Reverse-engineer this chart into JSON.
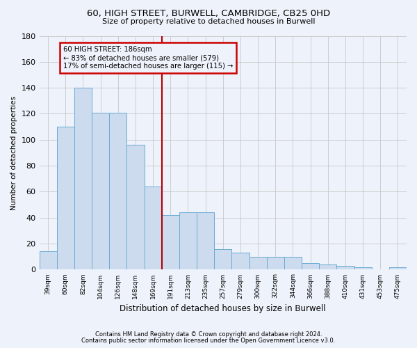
{
  "title_line1": "60, HIGH STREET, BURWELL, CAMBRIDGE, CB25 0HD",
  "title_line2": "Size of property relative to detached houses in Burwell",
  "xlabel": "Distribution of detached houses by size in Burwell",
  "ylabel": "Number of detached properties",
  "categories": [
    "39sqm",
    "60sqm",
    "82sqm",
    "104sqm",
    "126sqm",
    "148sqm",
    "169sqm",
    "191sqm",
    "213sqm",
    "235sqm",
    "257sqm",
    "279sqm",
    "300sqm",
    "322sqm",
    "344sqm",
    "366sqm",
    "388sqm",
    "410sqm",
    "431sqm",
    "453sqm",
    "475sqm"
  ],
  "values": [
    14,
    110,
    140,
    121,
    121,
    96,
    64,
    42,
    44,
    44,
    16,
    13,
    10,
    10,
    10,
    5,
    4,
    3,
    2,
    0,
    2
  ],
  "bar_color": "#ccdcee",
  "bar_edge_color": "#6aaad4",
  "grid_color": "#c8c8c8",
  "vline_color": "#b00000",
  "annotation_title": "60 HIGH STREET: 186sqm",
  "annotation_line1": "← 83% of detached houses are smaller (579)",
  "annotation_line2": "17% of semi-detached houses are larger (115) →",
  "annotation_box_color": "#cc0000",
  "ylim": [
    0,
    180
  ],
  "yticks": [
    0,
    20,
    40,
    60,
    80,
    100,
    120,
    140,
    160,
    180
  ],
  "footnote1": "Contains HM Land Registry data © Crown copyright and database right 2024.",
  "footnote2": "Contains public sector information licensed under the Open Government Licence v3.0.",
  "bg_color": "#eef2fa"
}
